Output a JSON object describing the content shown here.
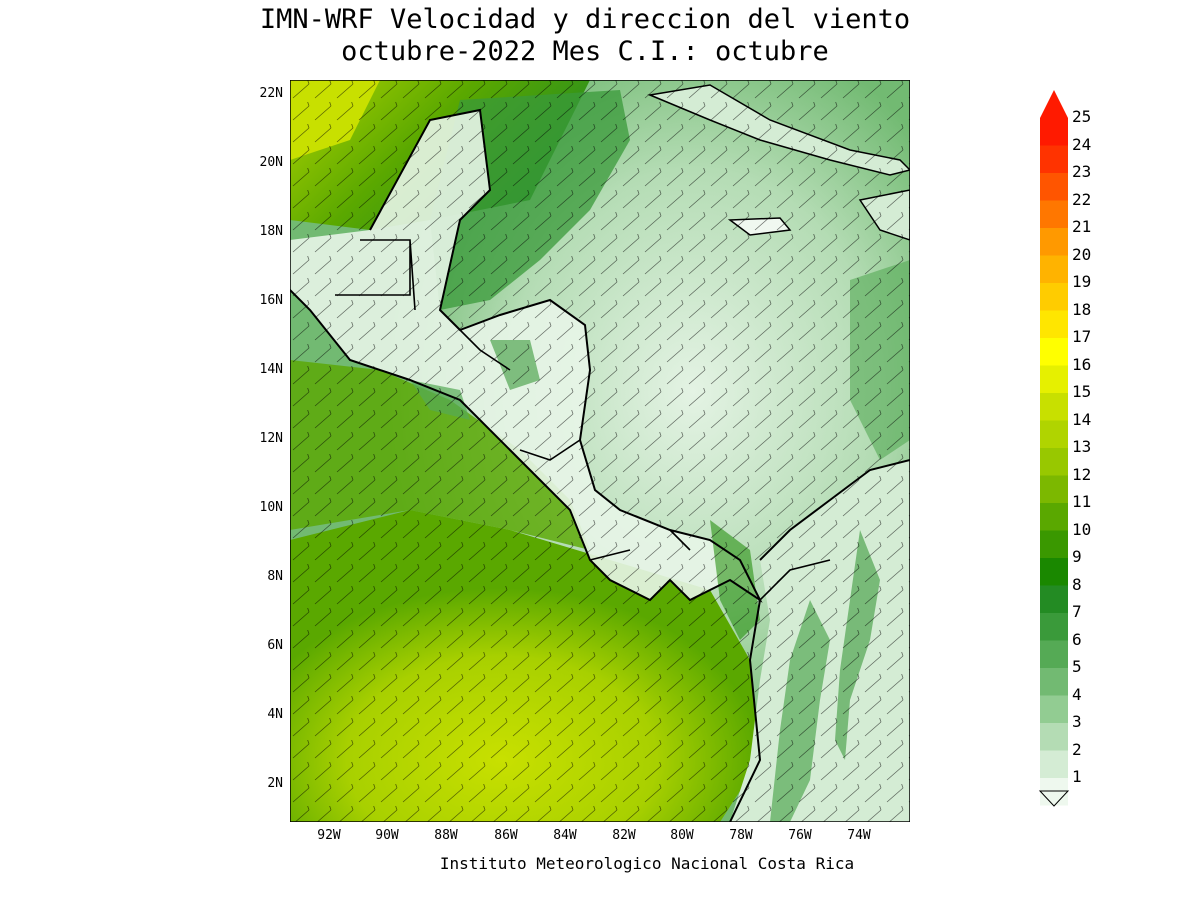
{
  "title_line1": "IMN-WRF Velocidad y direccion del viento",
  "title_line2": "octubre-2022 Mes C.I.: octubre",
  "footer": "Instituto Meteorologico Nacional Costa Rica",
  "lat_labels": [
    "22N",
    "20N",
    "18N",
    "16N",
    "14N",
    "12N",
    "10N",
    "8N",
    "6N",
    "4N",
    "2N"
  ],
  "lon_labels": [
    "92W",
    "90W",
    "88W",
    "86W",
    "84W",
    "82W",
    "80W",
    "78W",
    "76W",
    "74W"
  ],
  "colorbar": {
    "units_levels": [
      "25",
      "24",
      "23",
      "22",
      "21",
      "20",
      "19",
      "18",
      "17",
      "16",
      "15",
      "14",
      "13",
      "12",
      "11",
      "10",
      "9",
      "8",
      "7",
      "6",
      "5",
      "4",
      "3",
      "2",
      "1"
    ],
    "colors": [
      "#ff1a00",
      "#ff3300",
      "#ff5500",
      "#ff7700",
      "#ff9900",
      "#ffb300",
      "#ffcc00",
      "#ffe600",
      "#ffff00",
      "#e6f000",
      "#c8e000",
      "#b0d400",
      "#98c800",
      "#7cb800",
      "#5aa800",
      "#3a9800",
      "#1a8800",
      "#238b23",
      "#3a9a3a",
      "#55aa55",
      "#72ba72",
      "#92cc92",
      "#b4dcb4",
      "#d4ecd4",
      "#eef8ee"
    ]
  },
  "chart_data": {
    "type": "map",
    "variable": "wind speed and direction",
    "lat_range": [
      1,
      22.4
    ],
    "lon_range": [
      -93,
      -72.5
    ]
  }
}
